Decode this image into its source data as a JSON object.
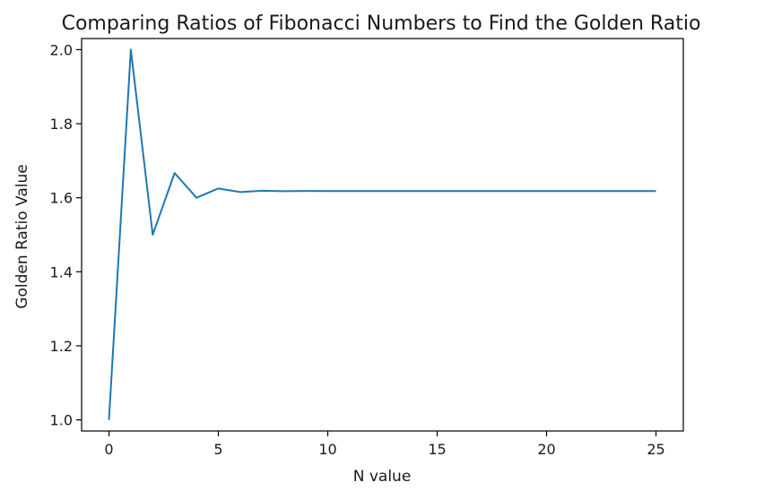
{
  "chart_data": {
    "type": "line",
    "title": "Comparing Ratios of Fibonacci Numbers to Find the Golden Ratio",
    "xlabel": "N value",
    "ylabel": "Golden Ratio Value",
    "xlim": [
      -1.25,
      26.25
    ],
    "ylim": [
      0.97,
      2.03
    ],
    "xticks": [
      0,
      5,
      10,
      15,
      20,
      25
    ],
    "yticks": [
      1.0,
      1.2,
      1.4,
      1.6,
      1.8,
      2.0
    ],
    "xtick_labels": [
      "0",
      "5",
      "10",
      "15",
      "20",
      "25"
    ],
    "ytick_labels": [
      "1.0",
      "1.2",
      "1.4",
      "1.6",
      "1.8",
      "2.0"
    ],
    "grid": false,
    "series": [
      {
        "color": "#1f77b4",
        "x": [
          0,
          1,
          2,
          3,
          4,
          5,
          6,
          7,
          8,
          9,
          10,
          11,
          12,
          13,
          14,
          15,
          16,
          17,
          18,
          19,
          20,
          21,
          22,
          23,
          24,
          25
        ],
        "y": [
          1.0,
          2.0,
          1.5,
          1.6667,
          1.6,
          1.625,
          1.6154,
          1.619,
          1.6176,
          1.6182,
          1.618,
          1.618,
          1.618,
          1.618,
          1.618,
          1.618,
          1.618,
          1.618,
          1.618,
          1.618,
          1.618,
          1.618,
          1.618,
          1.618,
          1.618,
          1.618
        ]
      }
    ]
  }
}
